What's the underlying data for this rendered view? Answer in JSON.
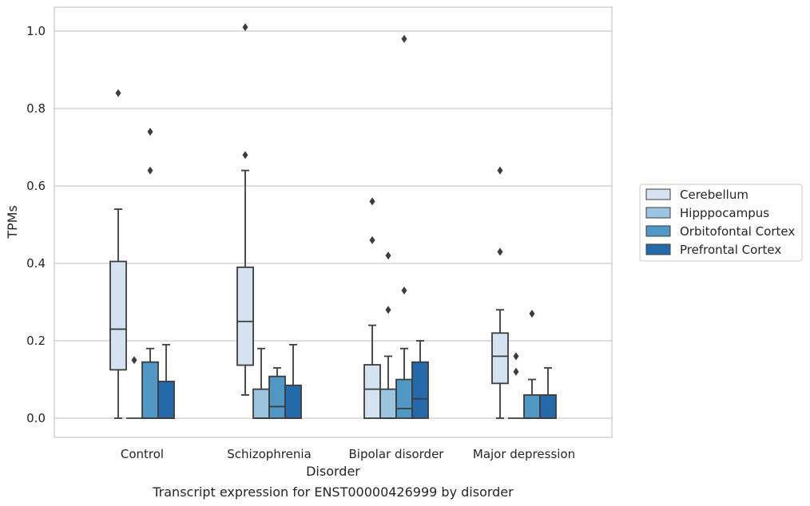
{
  "chart_data": {
    "type": "box",
    "title": "",
    "caption": "Transcript expression for ENST00000426999 by disorder",
    "xlabel": "Disorder",
    "ylabel": "TPMs",
    "ylim": [
      -0.05,
      1.06
    ],
    "yticks": [
      0.0,
      0.2,
      0.4,
      0.6,
      0.8,
      1.0
    ],
    "ytick_labels": [
      "0.0",
      "0.2",
      "0.4",
      "0.6",
      "0.8",
      "1.0"
    ],
    "grid": "horizontal",
    "legend_position": "right",
    "categories": [
      "Control",
      "Schizophrenia",
      "Bipolar disorder",
      "Major depression"
    ],
    "series": [
      {
        "name": "Cerebellum",
        "color": "#d4e2f1",
        "boxes": [
          {
            "whisker_low": 0.0,
            "q1": 0.125,
            "median": 0.23,
            "q3": 0.405,
            "whisker_high": 0.54,
            "outliers": [
              0.84
            ]
          },
          {
            "whisker_low": 0.06,
            "q1": 0.137,
            "median": 0.25,
            "q3": 0.39,
            "whisker_high": 0.64,
            "outliers": [
              1.01,
              0.68
            ]
          },
          {
            "whisker_low": 0.0,
            "q1": 0.0,
            "median": 0.075,
            "q3": 0.138,
            "whisker_high": 0.24,
            "outliers": [
              0.56,
              0.46
            ]
          },
          {
            "whisker_low": 0.0,
            "q1": 0.09,
            "median": 0.16,
            "q3": 0.22,
            "whisker_high": 0.28,
            "outliers": [
              0.64,
              0.43
            ]
          }
        ]
      },
      {
        "name": "Hipppocampus",
        "color": "#9bc4de",
        "boxes": [
          {
            "whisker_low": 0.0,
            "q1": 0.0,
            "median": 0.0,
            "q3": 0.0,
            "whisker_high": 0.0,
            "outliers": [
              0.15
            ]
          },
          {
            "whisker_low": 0.0,
            "q1": 0.0,
            "median": 0.0,
            "q3": 0.075,
            "whisker_high": 0.18,
            "outliers": []
          },
          {
            "whisker_low": 0.0,
            "q1": 0.0,
            "median": 0.0,
            "q3": 0.075,
            "whisker_high": 0.16,
            "outliers": [
              0.42,
              0.28
            ]
          },
          {
            "whisker_low": 0.0,
            "q1": 0.0,
            "median": 0.0,
            "q3": 0.0,
            "whisker_high": 0.0,
            "outliers": [
              0.16,
              0.12
            ]
          }
        ]
      },
      {
        "name": "Orbitofontal Cortex",
        "color": "#5197c6",
        "boxes": [
          {
            "whisker_low": 0.0,
            "q1": 0.0,
            "median": 0.0,
            "q3": 0.145,
            "whisker_high": 0.18,
            "outliers": [
              0.74,
              0.64
            ]
          },
          {
            "whisker_low": 0.0,
            "q1": 0.0,
            "median": 0.03,
            "q3": 0.108,
            "whisker_high": 0.13,
            "outliers": []
          },
          {
            "whisker_low": 0.0,
            "q1": 0.0,
            "median": 0.025,
            "q3": 0.1,
            "whisker_high": 0.18,
            "outliers": [
              0.98,
              0.33
            ]
          },
          {
            "whisker_low": 0.0,
            "q1": 0.0,
            "median": 0.0,
            "q3": 0.06,
            "whisker_high": 0.1,
            "outliers": [
              0.27
            ]
          }
        ]
      },
      {
        "name": "Prefrontal Cortex",
        "color": "#2469a9",
        "boxes": [
          {
            "whisker_low": 0.0,
            "q1": 0.0,
            "median": 0.0,
            "q3": 0.095,
            "whisker_high": 0.19,
            "outliers": []
          },
          {
            "whisker_low": 0.0,
            "q1": 0.0,
            "median": 0.0,
            "q3": 0.085,
            "whisker_high": 0.19,
            "outliers": []
          },
          {
            "whisker_low": 0.0,
            "q1": 0.0,
            "median": 0.05,
            "q3": 0.145,
            "whisker_high": 0.2,
            "outliers": []
          },
          {
            "whisker_low": 0.0,
            "q1": 0.0,
            "median": 0.0,
            "q3": 0.06,
            "whisker_high": 0.13,
            "outliers": []
          }
        ]
      }
    ]
  }
}
